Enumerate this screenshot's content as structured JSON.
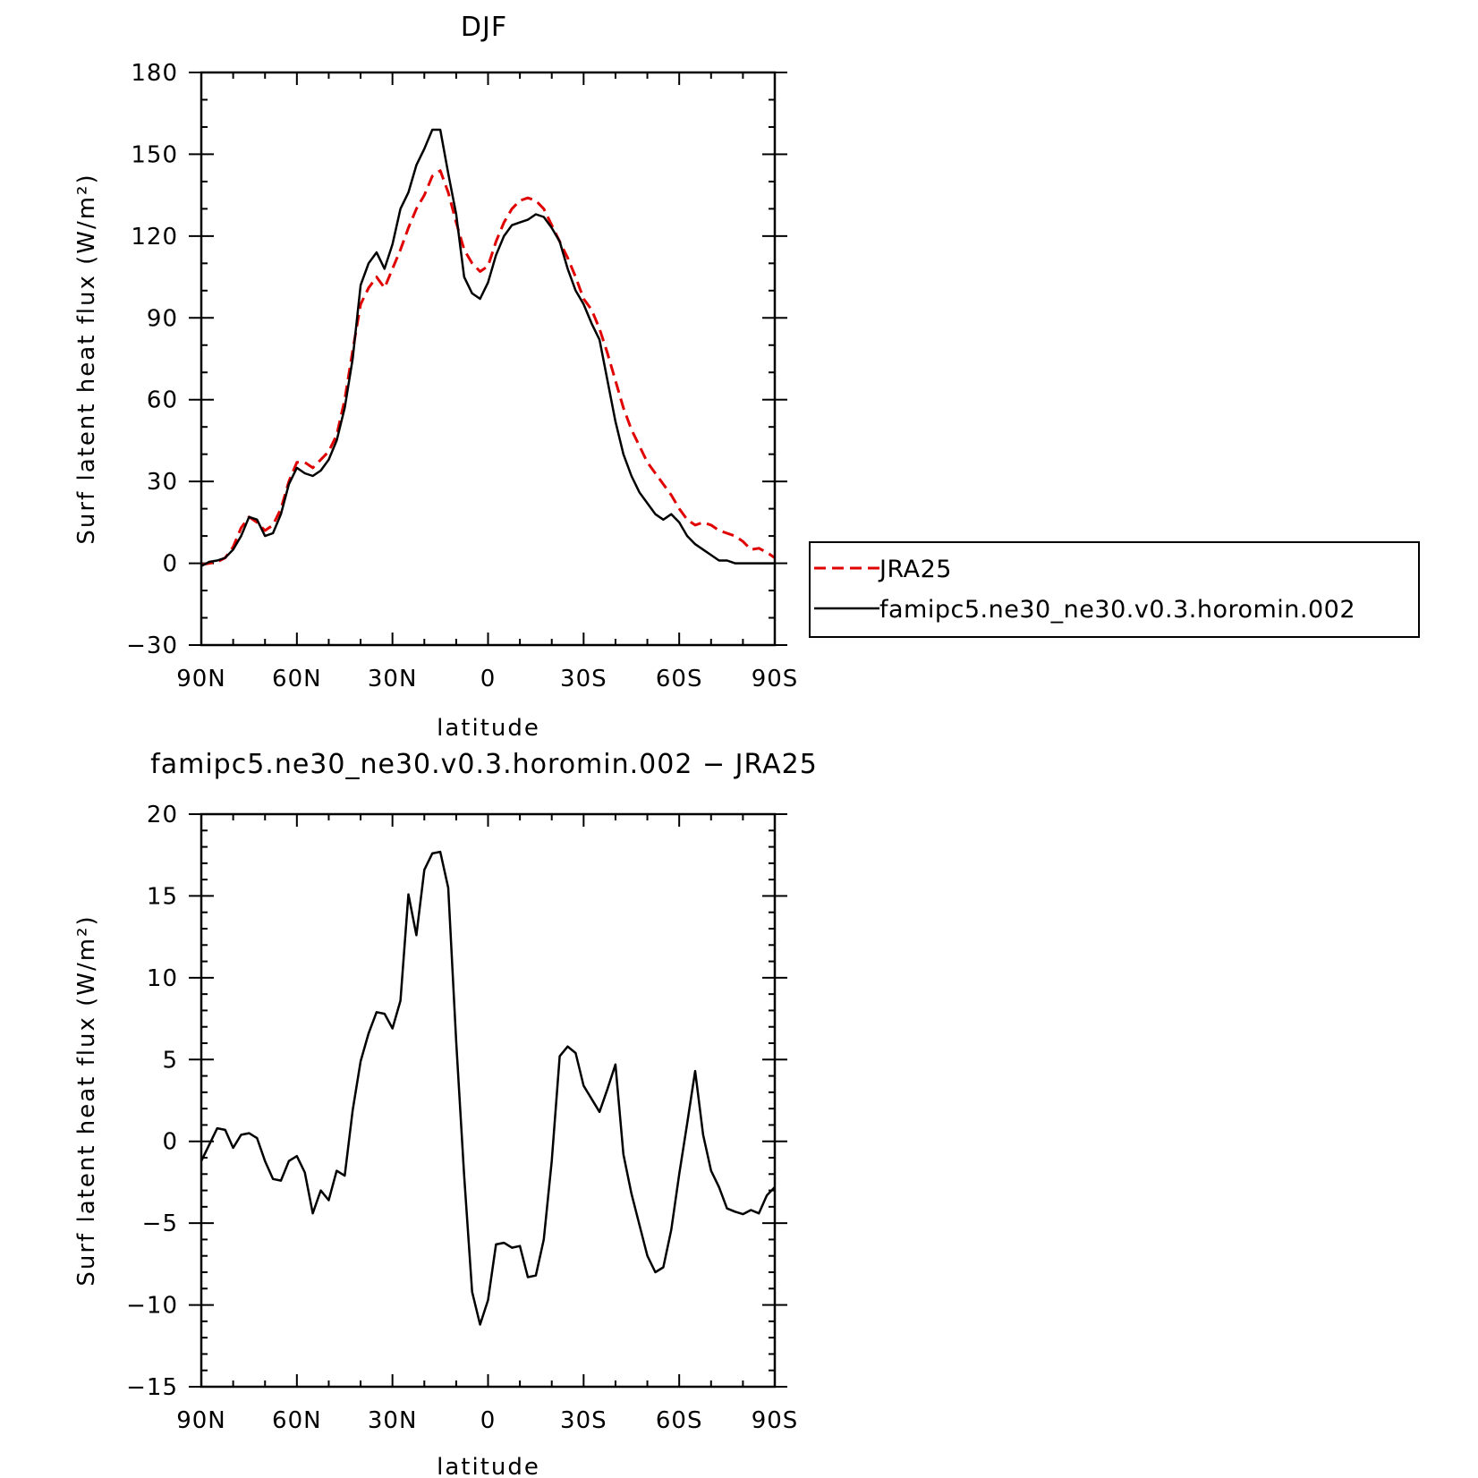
{
  "chart_data": [
    {
      "type": "line",
      "title": "DJF",
      "xlabel": "latitude",
      "ylabel": "Surf latent heat flux (W/m²)",
      "xlim": [
        90,
        -90
      ],
      "ylim": [
        -30,
        180
      ],
      "xticks": [
        90,
        60,
        30,
        0,
        -30,
        -60,
        -90
      ],
      "xtick_labels": [
        "90N",
        "60N",
        "30N",
        "0",
        "30S",
        "60S",
        "90S"
      ],
      "yticks": [
        -30,
        0,
        30,
        60,
        90,
        120,
        150,
        180
      ],
      "ytick_labels": [
        "−30",
        "0",
        "30",
        "60",
        "90",
        "120",
        "150",
        "180"
      ],
      "legend": {
        "placement": "right, outside plot"
      },
      "series": [
        {
          "name": "JRA25",
          "color": "#e00000",
          "dash": "dashed",
          "x": [
            90,
            87.5,
            85,
            82.5,
            80,
            77.5,
            75,
            72.5,
            70,
            67.5,
            65,
            62.5,
            60,
            57.5,
            55,
            52.5,
            50,
            47.5,
            45,
            42.5,
            40,
            37.5,
            35,
            32.5,
            30,
            27.5,
            25,
            22.5,
            20,
            17.5,
            15,
            12.5,
            10,
            7.5,
            5,
            2.5,
            0,
            -2.5,
            -5,
            -7.5,
            -10,
            -12.5,
            -15,
            -17.5,
            -20,
            -22.5,
            -25,
            -27.5,
            -30,
            -32.5,
            -35,
            -37.5,
            -40,
            -42.5,
            -45,
            -47.5,
            -50,
            -52.5,
            -55,
            -57.5,
            -60,
            -62.5,
            -65,
            -67.5,
            -70,
            -72.5,
            -75,
            -77.5,
            -80,
            -82.5,
            -85,
            -87.5,
            -90
          ],
          "y": [
            -0.5,
            0,
            0.5,
            2,
            6,
            13,
            17,
            15,
            12,
            14,
            20,
            30,
            37,
            37,
            35,
            38,
            41,
            47,
            60,
            78,
            95,
            101,
            105,
            101,
            108,
            115,
            123,
            130,
            135,
            142,
            144,
            136,
            125,
            115,
            110,
            107,
            109,
            118,
            125,
            130,
            133,
            134,
            133,
            130,
            124,
            118,
            112,
            105,
            97,
            93,
            86,
            77,
            67,
            57,
            49,
            43,
            37,
            33,
            29,
            25,
            20,
            16,
            14,
            15,
            14,
            12,
            11,
            10,
            8,
            5,
            5.5,
            4,
            2
          ]
        },
        {
          "name": "famipc5.ne30_ne30.v0.3.horomin.002",
          "color": "#000000",
          "dash": "solid",
          "x": [
            90,
            87.5,
            85,
            82.5,
            80,
            77.5,
            75,
            72.5,
            70,
            67.5,
            65,
            62.5,
            60,
            57.5,
            55,
            52.5,
            50,
            47.5,
            45,
            42.5,
            40,
            37.5,
            35,
            32.5,
            30,
            27.5,
            25,
            22.5,
            20,
            17.5,
            15,
            12.5,
            10,
            7.5,
            5,
            2.5,
            0,
            -2.5,
            -5,
            -7.5,
            -10,
            -12.5,
            -15,
            -17.5,
            -20,
            -22.5,
            -25,
            -27.5,
            -30,
            -32.5,
            -35,
            -37.5,
            -40,
            -42.5,
            -45,
            -47.5,
            -50,
            -52.5,
            -55,
            -57.5,
            -60,
            -62.5,
            -65,
            -67.5,
            -70,
            -72.5,
            -75,
            -77.5,
            -80,
            -82.5,
            -85,
            -87.5,
            -90
          ],
          "y": [
            -1,
            0.5,
            1,
            2,
            5,
            10,
            17,
            16,
            10,
            11,
            18,
            29,
            35,
            33,
            32,
            34,
            38,
            45,
            57,
            75,
            102,
            110,
            114,
            108,
            117,
            130,
            136,
            146,
            152,
            159,
            159,
            143,
            128,
            105,
            99,
            97,
            103,
            113,
            120,
            124,
            125,
            126,
            128,
            127,
            123,
            118,
            108,
            100,
            95,
            88,
            82,
            67,
            52,
            40,
            32,
            26,
            22,
            18,
            16,
            18,
            15,
            10,
            7,
            5,
            3,
            1,
            1,
            0,
            0,
            0,
            0,
            0,
            0
          ]
        }
      ]
    },
    {
      "type": "line",
      "title": "famipc5.ne30_ne30.v0.3.horomin.002 − JRA25",
      "xlabel": "latitude",
      "ylabel": "Surf latent heat flux (W/m²)",
      "xlim": [
        90,
        -90
      ],
      "ylim": [
        -15,
        20
      ],
      "xticks": [
        90,
        60,
        30,
        0,
        -30,
        -60,
        -90
      ],
      "xtick_labels": [
        "90N",
        "60N",
        "30N",
        "0",
        "30S",
        "60S",
        "90S"
      ],
      "yticks": [
        -15,
        -10,
        -5,
        0,
        5,
        10,
        15,
        20
      ],
      "ytick_labels": [
        "−15",
        "−10",
        "−5",
        "0",
        "5",
        "10",
        "15",
        "20"
      ],
      "series": [
        {
          "color": "#000000",
          "dash": "solid",
          "x": [
            90,
            87.5,
            85,
            82.5,
            80,
            77.5,
            75,
            72.5,
            70,
            67.5,
            65,
            62.5,
            60,
            57.5,
            55,
            52.5,
            50,
            47.5,
            45,
            42.5,
            40,
            37.5,
            35,
            32.5,
            30,
            27.5,
            25,
            22.5,
            20,
            17.5,
            15,
            12.5,
            10,
            7.5,
            5,
            2.5,
            0,
            -2.5,
            -5,
            -7.5,
            -10,
            -12.5,
            -15,
            -17.5,
            -20,
            -22.5,
            -25,
            -27.5,
            -30,
            -32.5,
            -35,
            -37.5,
            -40,
            -42.5,
            -45,
            -47.5,
            -50,
            -52.5,
            -55,
            -57.5,
            -60,
            -62.5,
            -65,
            -67.5,
            -70,
            -72.5,
            -75,
            -77.5,
            -80,
            -82.5,
            -85,
            -87.5,
            -90
          ],
          "y": [
            -1.2,
            -0.2,
            0.8,
            0.7,
            -0.4,
            0.4,
            0.5,
            0.2,
            -1.2,
            -2.3,
            -2.4,
            -1.2,
            -0.9,
            -1.9,
            -4.4,
            -3,
            -3.6,
            -1.8,
            -2.1,
            1.9,
            4.9,
            6.6,
            7.9,
            7.8,
            6.9,
            8.6,
            15.1,
            12.6,
            16.6,
            17.6,
            17.7,
            15.5,
            6.1,
            -2.1,
            -9.2,
            -11.2,
            -9.7,
            -6.3,
            -6.2,
            -6.5,
            -6.4,
            -8.3,
            -8.2,
            -6,
            -1.2,
            5.2,
            5.8,
            5.4,
            3.4,
            2.6,
            1.8,
            3.2,
            4.7,
            -0.8,
            -3.2,
            -5.1,
            -7,
            -8,
            -7.7,
            -5.4,
            -2,
            1.1,
            4.3,
            0.4,
            -1.8,
            -2.8,
            -4.1,
            -4.3,
            -4.45,
            -4.2,
            -4.4,
            -3.3,
            -2.8
          ]
        }
      ]
    }
  ]
}
